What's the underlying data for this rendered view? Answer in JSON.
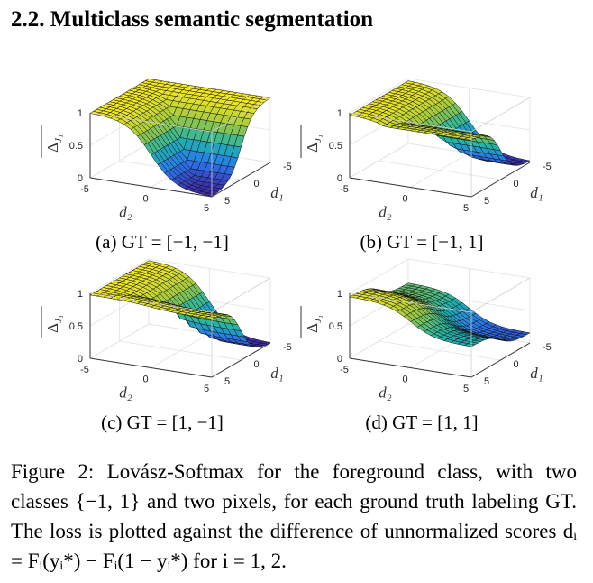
{
  "section": {
    "title": "2.2. Multiclass semantic segmentation"
  },
  "panels": [
    {
      "caption": "(a) GT = [−1, −1]",
      "zticks": [
        "1",
        "0.5",
        "0"
      ],
      "d2ticks": [
        "-5",
        "0",
        "5"
      ],
      "d1ticks": [
        "-5",
        "0",
        "5"
      ],
      "xlabel": "d₂",
      "ylabel": "d₁",
      "zlabel": {
        "symbol": "Δ",
        "sub": "J₁"
      }
    },
    {
      "caption": "(b) GT = [−1, 1]",
      "zticks": [
        "1",
        "0.5",
        "0"
      ],
      "d2ticks": [
        "-5",
        "0",
        "5"
      ],
      "d1ticks": [
        "-5",
        "0",
        "5"
      ],
      "xlabel": "d₂",
      "ylabel": "d₁",
      "zlabel": {
        "symbol": "Δ",
        "sub": "J₁"
      }
    },
    {
      "caption": "(c) GT = [1, −1]",
      "zticks": [
        "1",
        "0.5",
        "0"
      ],
      "d2ticks": [
        "-5",
        "0",
        "5"
      ],
      "d1ticks": [
        "-5",
        "0",
        "5"
      ],
      "xlabel": "d₂",
      "ylabel": "d₁",
      "zlabel": {
        "symbol": "Δ",
        "sub": "J₁"
      }
    },
    {
      "caption": "(d) GT = [1, 1]",
      "zticks": [
        "1",
        "0.5",
        "0"
      ],
      "d2ticks": [
        "-5",
        "0",
        "5"
      ],
      "d1ticks": [
        "-5",
        "0",
        "5"
      ],
      "xlabel": "d₂",
      "ylabel": "d₁",
      "zlabel": {
        "symbol": "Δ",
        "sub": "J₁"
      }
    }
  ],
  "figure_caption": "Figure 2: Lovász-Softmax for the foreground class, with two classes {−1, 1} and two pixels, for each ground truth labeling GT. The loss is plotted against the difference of unnormalized scores dᵢ = Fᵢ(yᵢ*) − Fᵢ(1 − yᵢ*) for i = 1, 2."
}
